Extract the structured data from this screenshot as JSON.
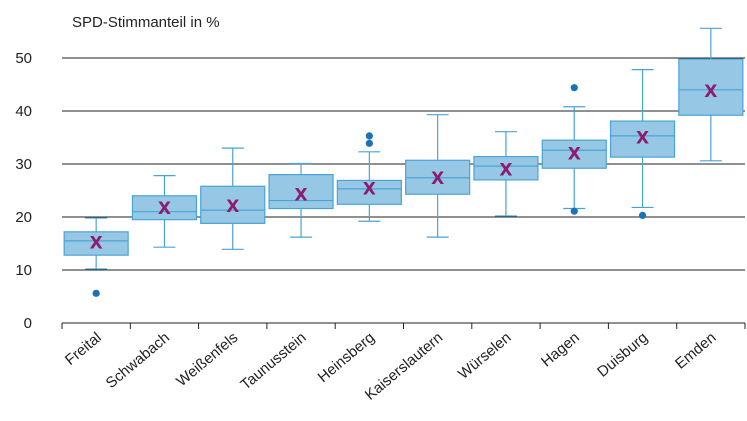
{
  "chart_data": {
    "type": "box",
    "ylabel": "SPD-Stimmanteil in %",
    "ylim": [
      0,
      55
    ],
    "yticks": [
      0,
      10,
      20,
      30,
      40,
      50
    ],
    "grid": "horizontal",
    "colors": {
      "box_fill": "#96c8e6",
      "box_stroke": "#4aa3d6",
      "whisker": "#4aa3d6",
      "median": "#4aa3d6",
      "mean_marker": "#8e1c6e",
      "outlier": "#1a73b5",
      "grid": "#222222"
    },
    "mean_symbol": "X",
    "categories": [
      "Freital",
      "Schwabach",
      "Weißenfels",
      "Taunusstein",
      "Heinsberg",
      "Kaiserslautern",
      "Würselen",
      "Hagen",
      "Duisburg",
      "Emden"
    ],
    "boxes": [
      {
        "category": "Freital",
        "whisker_low": 10.2,
        "q1": 12.8,
        "median": 15.5,
        "q3": 17.2,
        "whisker_high": 19.8,
        "mean": 15.2,
        "outliers": [
          5.6
        ]
      },
      {
        "category": "Schwabach",
        "whisker_low": 14.3,
        "q1": 19.5,
        "median": 21.0,
        "q3": 24.0,
        "whisker_high": 27.8,
        "mean": 21.7,
        "outliers": []
      },
      {
        "category": "Weißenfels",
        "whisker_low": 13.9,
        "q1": 18.8,
        "median": 21.3,
        "q3": 25.8,
        "whisker_high": 33.0,
        "mean": 22.1,
        "outliers": []
      },
      {
        "category": "Taunusstein",
        "whisker_low": 16.2,
        "q1": 21.6,
        "median": 23.1,
        "q3": 28.0,
        "whisker_high": 30.1,
        "mean": 24.2,
        "outliers": []
      },
      {
        "category": "Heinsberg",
        "whisker_low": 19.2,
        "q1": 22.4,
        "median": 25.3,
        "q3": 26.9,
        "whisker_high": 32.3,
        "mean": 25.4,
        "outliers": [
          33.9,
          35.3
        ]
      },
      {
        "category": "Kaiserslautern",
        "whisker_low": 16.2,
        "q1": 24.3,
        "median": 27.4,
        "q3": 30.7,
        "whisker_high": 39.3,
        "mean": 27.4,
        "outliers": []
      },
      {
        "category": "Würselen",
        "whisker_low": 20.2,
        "q1": 27.0,
        "median": 29.6,
        "q3": 31.4,
        "whisker_high": 36.1,
        "mean": 29.0,
        "outliers": []
      },
      {
        "category": "Hagen",
        "whisker_low": 21.6,
        "q1": 29.2,
        "median": 32.6,
        "q3": 34.5,
        "whisker_high": 40.8,
        "mean": 32.0,
        "outliers": [
          21.1,
          44.4
        ]
      },
      {
        "category": "Duisburg",
        "whisker_low": 21.8,
        "q1": 31.3,
        "median": 35.3,
        "q3": 38.1,
        "whisker_high": 47.8,
        "mean": 35.0,
        "outliers": [
          20.3
        ]
      },
      {
        "category": "Emden",
        "whisker_low": 30.6,
        "q1": 39.2,
        "median": 44.0,
        "q3": 49.8,
        "whisker_high": 55.6,
        "mean": 43.8,
        "outliers": []
      }
    ]
  }
}
